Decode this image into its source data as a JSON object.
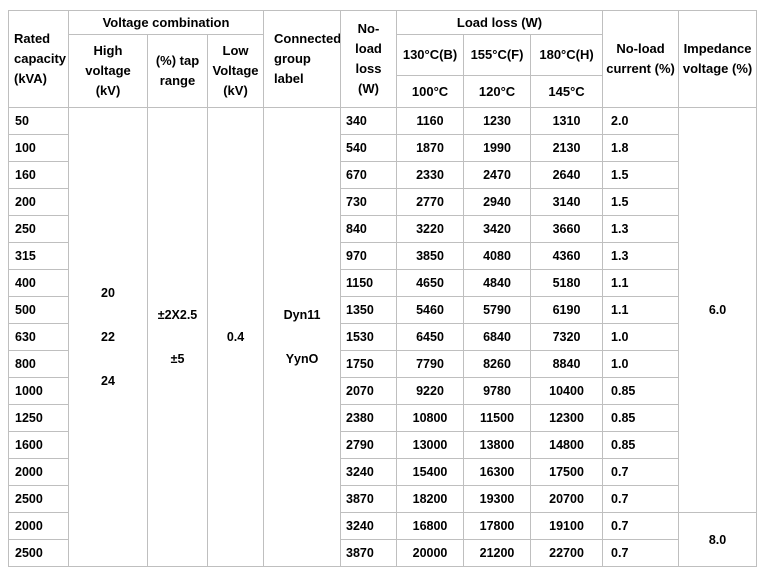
{
  "table": {
    "header": {
      "rated_capacity": "Rated\ncapacity\n(kVA)",
      "voltage_combination": "Voltage combination",
      "high_voltage": "High\nvoltage\n(kV)",
      "tap_range": "(%) tap\nrange",
      "low_voltage": "Low\nVoltage\n(kV)",
      "connected_group": "Connected\ngroup\nlabel",
      "no_load_loss": "No-\nload\nloss\n(W)",
      "load_loss": "Load loss (W)",
      "load_loss_cols": [
        {
          "temp": "130°C(B)",
          "ref": "100°C"
        },
        {
          "temp": "155°C(F)",
          "ref": "120°C"
        },
        {
          "temp": "180°C(H)",
          "ref": "145°C"
        }
      ],
      "no_load_current": "No-load\ncurrent (%)",
      "impedance_voltage": "Impedance\nvoltage (%)"
    },
    "merged": {
      "high_voltage": "20\n\n22\n\n24",
      "tap_range": "±2X2.5\n\n±5",
      "low_voltage": "0.4",
      "connected_group": "Dyn11\n\nYynO"
    },
    "impedance_groups": [
      {
        "value": "6.0",
        "rows": 15
      },
      {
        "value": "8.0",
        "rows": 2
      }
    ],
    "rows": [
      {
        "capacity": "50",
        "no_load_loss": "340",
        "load_loss": [
          "1160",
          "1230",
          "1310"
        ],
        "no_load_current": "2.0"
      },
      {
        "capacity": "100",
        "no_load_loss": "540",
        "load_loss": [
          "1870",
          "1990",
          "2130"
        ],
        "no_load_current": "1.8"
      },
      {
        "capacity": "160",
        "no_load_loss": "670",
        "load_loss": [
          "2330",
          "2470",
          "2640"
        ],
        "no_load_current": "1.5"
      },
      {
        "capacity": "200",
        "no_load_loss": "730",
        "load_loss": [
          "2770",
          "2940",
          "3140"
        ],
        "no_load_current": "1.5"
      },
      {
        "capacity": "250",
        "no_load_loss": "840",
        "load_loss": [
          "3220",
          "3420",
          "3660"
        ],
        "no_load_current": "1.3"
      },
      {
        "capacity": "315",
        "no_load_loss": "970",
        "load_loss": [
          "3850",
          "4080",
          "4360"
        ],
        "no_load_current": "1.3"
      },
      {
        "capacity": "400",
        "no_load_loss": "1150",
        "load_loss": [
          "4650",
          "4840",
          "5180"
        ],
        "no_load_current": "1.1"
      },
      {
        "capacity": "500",
        "no_load_loss": "1350",
        "load_loss": [
          "5460",
          "5790",
          "6190"
        ],
        "no_load_current": "1.1"
      },
      {
        "capacity": "630",
        "no_load_loss": "1530",
        "load_loss": [
          "6450",
          "6840",
          "7320"
        ],
        "no_load_current": "1.0"
      },
      {
        "capacity": "800",
        "no_load_loss": "1750",
        "load_loss": [
          "7790",
          "8260",
          "8840"
        ],
        "no_load_current": "1.0"
      },
      {
        "capacity": "1000",
        "no_load_loss": "2070",
        "load_loss": [
          "9220",
          "9780",
          "10400"
        ],
        "no_load_current": "0.85"
      },
      {
        "capacity": "1250",
        "no_load_loss": "2380",
        "load_loss": [
          "10800",
          "11500",
          "12300"
        ],
        "no_load_current": "0.85"
      },
      {
        "capacity": "1600",
        "no_load_loss": "2790",
        "load_loss": [
          "13000",
          "13800",
          "14800"
        ],
        "no_load_current": "0.85"
      },
      {
        "capacity": "2000",
        "no_load_loss": "3240",
        "load_loss": [
          "15400",
          "16300",
          "17500"
        ],
        "no_load_current": "0.7"
      },
      {
        "capacity": "2500",
        "no_load_loss": "3870",
        "load_loss": [
          "18200",
          "19300",
          "20700"
        ],
        "no_load_current": "0.7"
      },
      {
        "capacity": "2000",
        "no_load_loss": "3240",
        "load_loss": [
          "16800",
          "17800",
          "19100"
        ],
        "no_load_current": "0.7"
      },
      {
        "capacity": "2500",
        "no_load_loss": "3870",
        "load_loss": [
          "20000",
          "21200",
          "22700"
        ],
        "no_load_current": "0.7"
      }
    ]
  }
}
